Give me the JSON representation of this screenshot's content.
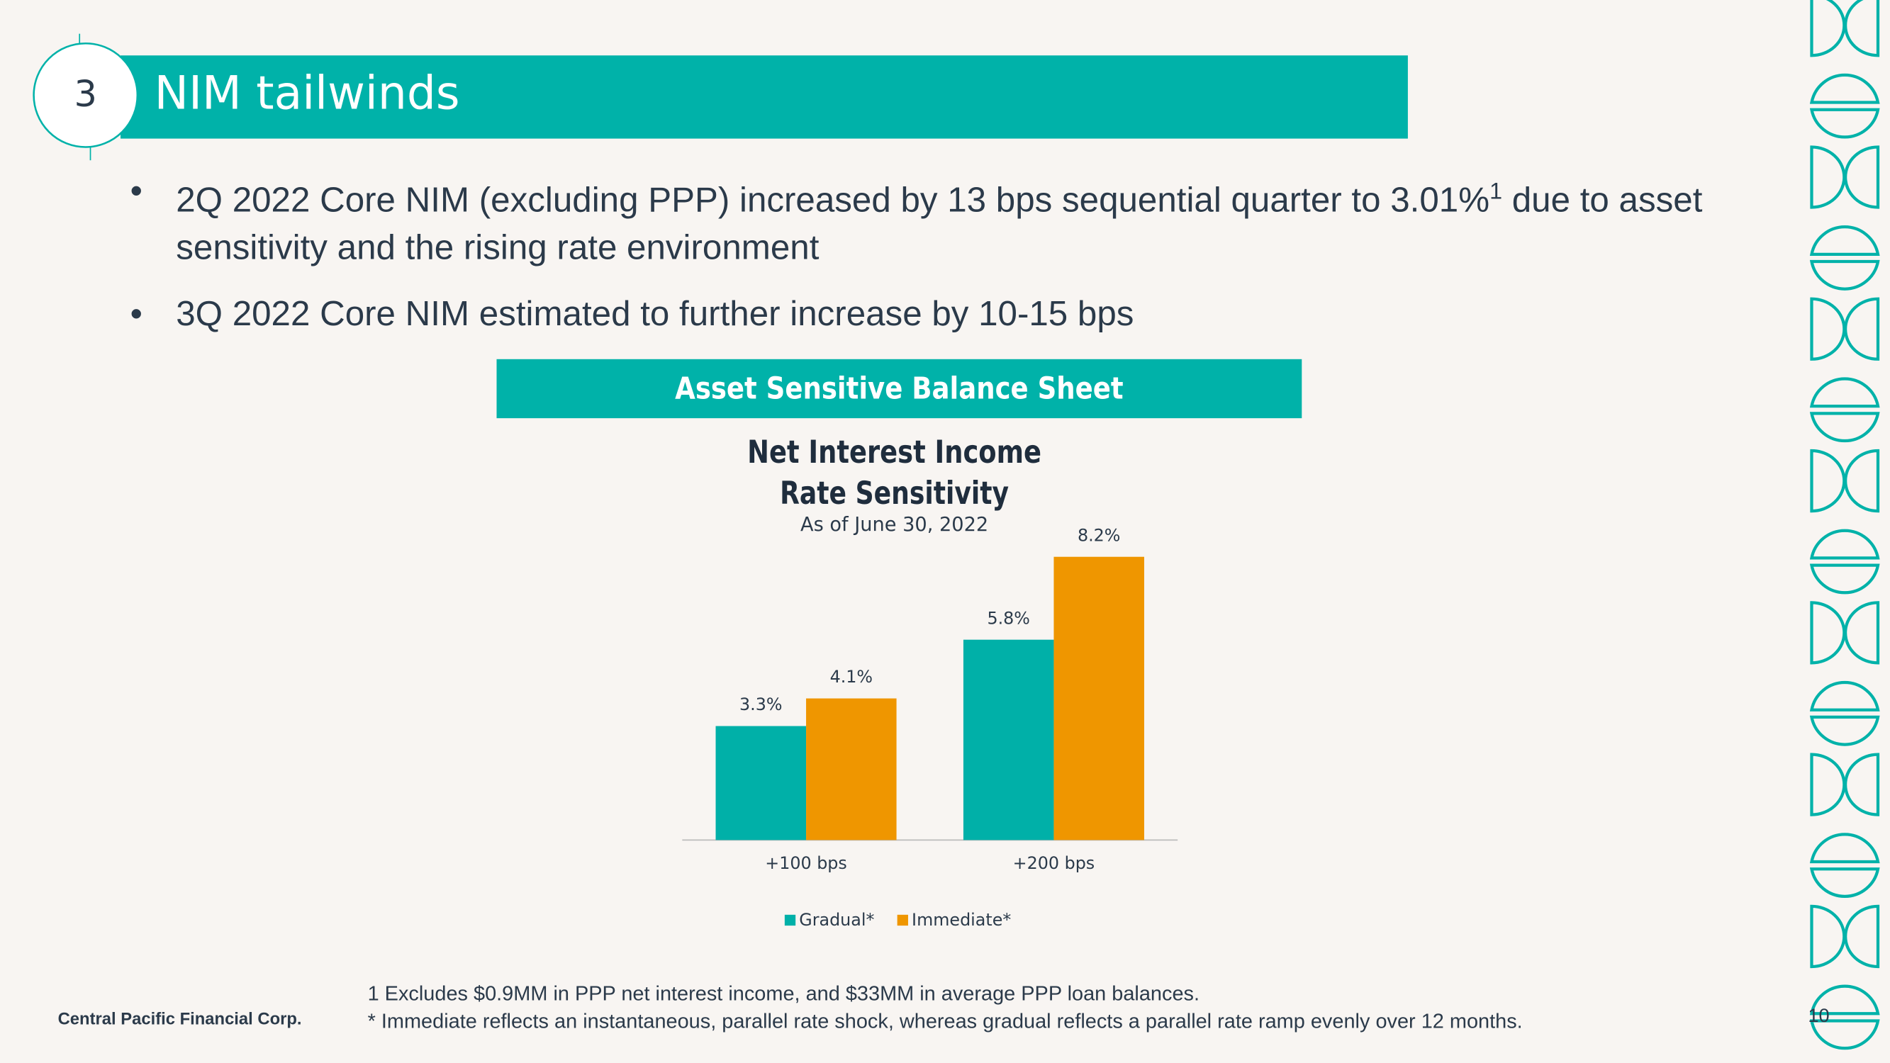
{
  "slide": {
    "section_number": "3",
    "title": "NIM tailwinds",
    "bullets": [
      {
        "text": "2Q 2022 Core NIM (excluding PPP) increased by 13 bps sequential quarter to 3.01%",
        "superscript": "1",
        "continuation": " due to asset sensitivity and the rising rate environment"
      },
      {
        "text": "3Q 2022 Core NIM estimated to further increase by 10-15 bps"
      }
    ],
    "chart_header": "Asset Sensitive Balance Sheet",
    "footnotes": [
      "1 Excludes $0.9MM in PPP net interest income, and $33MM in average PPP loan balances.",
      "* Immediate reflects an instantaneous, parallel rate shock, whereas gradual reflects a parallel rate ramp evenly over 12 months."
    ],
    "company": "Central Pacific Financial Corp.",
    "page_number": "10"
  },
  "chart_data": {
    "type": "bar",
    "title": [
      "Net Interest Income",
      "Rate Sensitivity"
    ],
    "subtitle": "As of June 30, 2022",
    "categories": [
      "+100 bps",
      "+200 bps"
    ],
    "series": [
      {
        "name": "Gradual*",
        "color": "#00b0a8",
        "values": [
          3.3,
          5.8
        ],
        "value_labels": [
          "3.3%",
          "5.8%"
        ]
      },
      {
        "name": "Immediate*",
        "color": "#ef9600",
        "values": [
          4.1,
          8.2
        ],
        "value_labels": [
          "4.1%",
          "8.2%"
        ]
      }
    ],
    "legend": "bottom",
    "grid": false
  }
}
